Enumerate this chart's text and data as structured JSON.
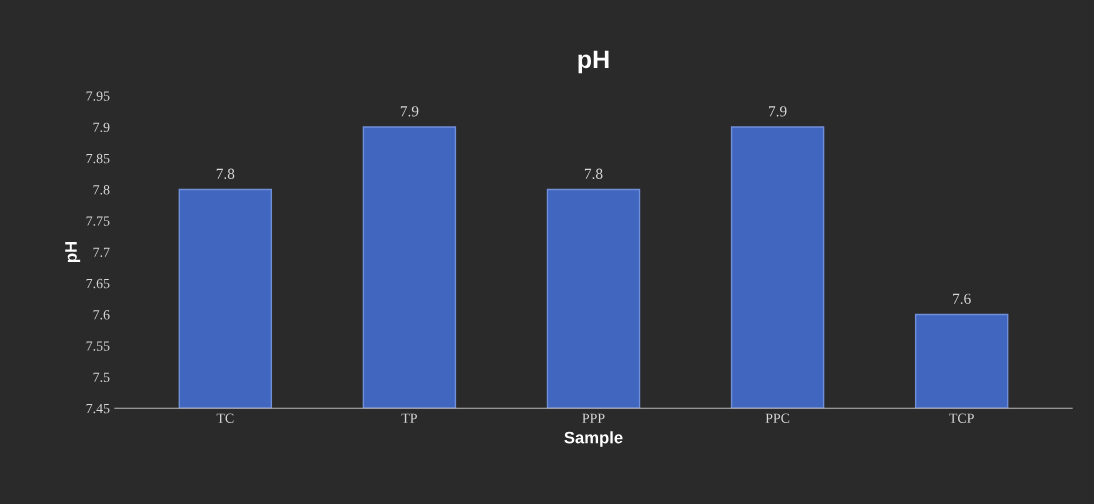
{
  "chart_data": {
    "type": "bar",
    "title": "pH",
    "xlabel": "Sample",
    "ylabel": "pH",
    "categories": [
      "TC",
      "TP",
      "PPP",
      "PPC",
      "TCP"
    ],
    "values": [
      7.8,
      7.9,
      7.8,
      7.9,
      7.6
    ],
    "color": "#4166c0",
    "ylim": [
      7.45,
      7.95
    ],
    "yticks": [
      7.45,
      7.5,
      7.55,
      7.6,
      7.65,
      7.7,
      7.75,
      7.8,
      7.85,
      7.9,
      7.95
    ],
    "data_labels": true,
    "grid": false,
    "legend": false
  }
}
